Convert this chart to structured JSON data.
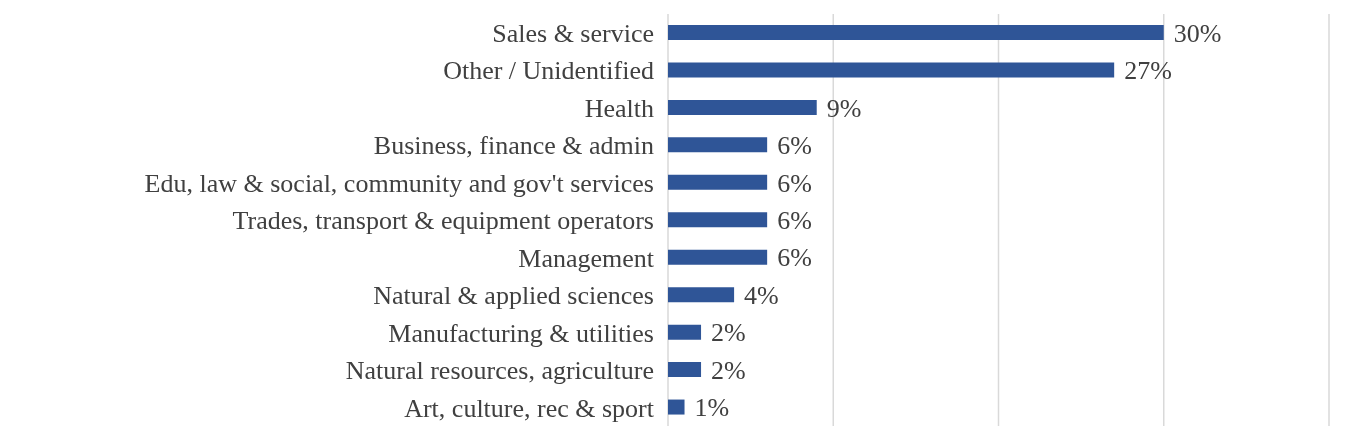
{
  "chart_data": {
    "type": "bar",
    "orientation": "horizontal",
    "categories": [
      "Sales & service",
      "Other / Unidentified",
      "Health",
      "Business, finance & admin",
      "Edu, law & social, community and gov't services",
      "Trades, transport & equipment operators",
      "Management",
      "Natural & applied sciences",
      "Manufacturing & utilities",
      "Natural resources, agriculture",
      "Art, culture, rec & sport"
    ],
    "values": [
      30,
      27,
      9,
      6,
      6,
      6,
      6,
      4,
      2,
      2,
      1
    ],
    "value_labels": [
      "30%",
      "27%",
      "9%",
      "6%",
      "6%",
      "6%",
      "6%",
      "4%",
      "2%",
      "2%",
      "1%"
    ],
    "color": "#2f5597",
    "xlim": [
      0,
      40
    ],
    "xticks": [
      {
        "value": 0,
        "label": null
      },
      {
        "value": 10,
        "label": null
      },
      {
        "value": 20,
        "label": null
      },
      {
        "value": 30,
        "label": null
      },
      {
        "value": 40,
        "label": null
      }
    ],
    "tick_labels": "y",
    "grid": "x",
    "legend": false
  }
}
